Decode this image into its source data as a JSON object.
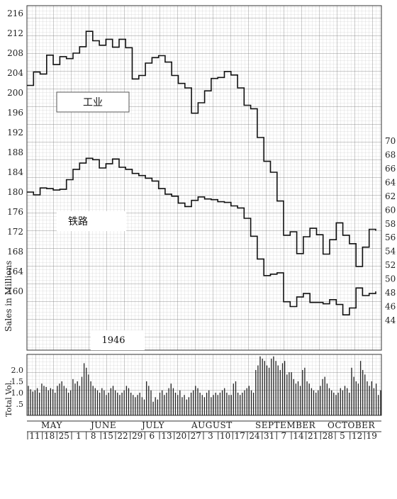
{
  "chart_data": {
    "type": "line",
    "title": "",
    "year_label": "1946",
    "left_axis": {
      "ticks": [
        216,
        212,
        208,
        204,
        200,
        196,
        192,
        188,
        184,
        180,
        176,
        172,
        168,
        164,
        160
      ]
    },
    "right_axis": {
      "ticks": [
        70,
        68,
        66,
        64,
        62,
        60,
        58,
        56,
        54,
        52,
        50,
        48,
        46,
        44
      ]
    },
    "volume_axis": {
      "title": "Total Vol.",
      "ticks": [
        "2.0",
        "1.5",
        "1.0",
        ".5"
      ]
    },
    "sales_axis_title": "Sales in Millions",
    "months": [
      "MAY",
      "JUNE",
      "JULY",
      "AUGUST",
      "SEPTEMBER",
      "OCTOBER"
    ],
    "week_dates": [
      "11",
      "18",
      "25",
      "1",
      "8",
      "15",
      "22",
      "29",
      "6",
      "13",
      "20",
      "27",
      "3",
      "10",
      "17",
      "24",
      "31",
      "7",
      "14",
      "21",
      "28",
      "5",
      "12",
      "19"
    ],
    "series": [
      {
        "name": "工业",
        "axis": "left",
        "values": [
          201.5,
          204.2,
          203.8,
          207.6,
          205.7,
          207.3,
          206.9,
          208.0,
          209.3,
          212.4,
          210.5,
          209.6,
          210.8,
          209.2,
          210.8,
          209.1,
          202.8,
          203.5,
          206.0,
          207.1,
          207.5,
          206.2,
          203.5,
          201.9,
          201.0,
          195.9,
          198.0,
          200.4,
          202.9,
          203.1,
          204.3,
          203.6,
          201.0,
          197.5,
          196.8,
          191.0,
          186.2,
          184.0,
          178.2,
          171.3,
          172.0,
          167.6,
          171.0,
          172.7,
          171.4,
          167.5,
          170.4,
          173.8,
          171.3,
          169.6,
          165.0,
          168.9,
          172.5,
          172.2
        ],
        "color": "#111111"
      },
      {
        "name": "铁路",
        "axis": "right",
        "values": [
          62.6,
          62.2,
          63.2,
          63.1,
          62.9,
          63.0,
          64.4,
          65.9,
          66.8,
          67.5,
          67.3,
          66.1,
          66.7,
          67.4,
          66.2,
          65.9,
          65.3,
          65.0,
          64.6,
          64.2,
          63.1,
          62.3,
          62.0,
          61.0,
          60.5,
          61.4,
          61.9,
          61.6,
          61.5,
          61.2,
          61.1,
          60.6,
          60.3,
          58.8,
          56.2,
          52.9,
          50.5,
          50.7,
          50.9,
          46.7,
          46.0,
          47.4,
          47.9,
          46.6,
          46.6,
          46.4,
          47.0,
          46.3,
          44.8,
          45.8,
          48.7,
          47.6,
          47.9,
          48.2
        ],
        "color": "#111111"
      }
    ],
    "volume": {
      "ylabel": "Total Vol.",
      "ylim": [
        0,
        2.5
      ],
      "values": [
        1.3,
        1.15,
        1.05,
        1.1,
        1.2,
        1.0,
        1.4,
        1.3,
        1.25,
        1.1,
        1.2,
        1.15,
        1.0,
        1.3,
        1.4,
        1.5,
        1.3,
        1.2,
        1.0,
        1.1,
        1.6,
        1.4,
        1.5,
        1.3,
        1.7,
        2.3,
        2.1,
        1.8,
        1.5,
        1.3,
        1.2,
        1.1,
        1.0,
        1.2,
        1.1,
        0.9,
        1.0,
        1.2,
        1.3,
        1.1,
        1.0,
        0.9,
        1.0,
        1.1,
        1.3,
        1.2,
        1.0,
        0.9,
        0.8,
        0.9,
        1.0,
        0.8,
        0.7,
        1.5,
        1.3,
        1.1,
        0.6,
        0.8,
        0.7,
        1.0,
        1.1,
        0.9,
        1.0,
        1.2,
        1.4,
        1.2,
        1.0,
        0.9,
        1.1,
        0.8,
        0.9,
        0.7,
        0.8,
        1.0,
        1.1,
        1.3,
        1.2,
        1.0,
        0.9,
        0.8,
        1.0,
        1.1,
        0.8,
        0.9,
        1.0,
        0.9,
        1.0,
        1.1,
        1.2,
        1.0,
        0.9,
        0.9,
        1.4,
        1.5,
        1.0,
        0.9,
        1.0,
        1.1,
        1.2,
        1.3,
        1.1,
        1.0,
        2.0,
        2.2,
        2.6,
        2.5,
        2.4,
        2.2,
        2.1,
        2.5,
        2.6,
        2.4,
        2.2,
        2.0,
        2.3,
        2.4,
        1.8,
        1.9,
        1.9,
        1.6,
        1.4,
        1.5,
        1.3,
        2.0,
        2.1,
        1.5,
        1.4,
        1.2,
        1.1,
        1.0,
        1.1,
        1.3,
        1.6,
        1.7,
        1.4,
        1.2,
        1.1,
        1.0,
        0.9,
        1.0,
        1.2,
        1.1,
        1.3,
        1.2,
        1.0,
        2.1,
        1.7,
        1.5,
        1.4,
        2.4,
        2.0,
        1.8,
        1.5,
        1.3,
        1.5,
        1.2,
        1.4,
        0.9,
        1.1
      ]
    }
  }
}
